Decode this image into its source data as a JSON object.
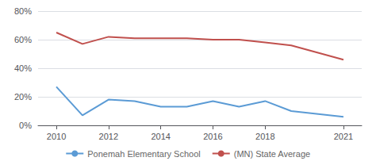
{
  "chart_data": {
    "type": "line",
    "x": [
      2010,
      2011,
      2012,
      2013,
      2014,
      2015,
      2016,
      2017,
      2018,
      2019,
      2021
    ],
    "series": [
      {
        "name": "Ponemah Elementary School",
        "color": "#5b9bd5",
        "values": [
          0.27,
          0.07,
          0.18,
          0.17,
          0.13,
          0.13,
          0.17,
          0.13,
          0.17,
          0.1,
          0.06
        ]
      },
      {
        "name": "(MN) State Average",
        "color": "#c0504d",
        "values": [
          0.65,
          0.57,
          0.62,
          0.61,
          0.61,
          0.61,
          0.6,
          0.6,
          0.58,
          0.56,
          0.46
        ]
      }
    ],
    "xlim": [
      2009.3,
      2021.7
    ],
    "xticks": [
      2010,
      2012,
      2014,
      2016,
      2018,
      2021
    ],
    "ylim": [
      0,
      0.8
    ],
    "yticks": [
      {
        "value": 0,
        "label": "0%"
      },
      {
        "value": 0.2,
        "label": "20%"
      },
      {
        "value": 0.4,
        "label": "40%"
      },
      {
        "value": 0.6,
        "label": "60%"
      },
      {
        "value": 0.8,
        "label": "80%"
      }
    ],
    "grid": true,
    "legend": "bottom"
  }
}
